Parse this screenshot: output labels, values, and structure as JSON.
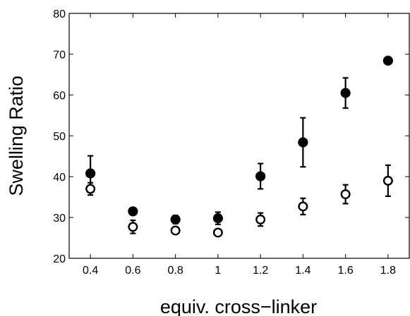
{
  "chart_data": {
    "type": "scatter",
    "title": "",
    "xlabel": "equiv. cross−linker",
    "ylabel": "Swelling Ratio",
    "xlim": [
      0.3,
      1.9
    ],
    "ylim": [
      20,
      80
    ],
    "xticks": [
      0.4,
      0.6,
      0.8,
      1.0,
      1.2,
      1.4,
      1.6,
      1.8
    ],
    "xtick_labels": [
      "0.4",
      "0.6",
      "0.8",
      "1",
      "1.2",
      "1.4",
      "1.6",
      "1.8"
    ],
    "yticks": [
      20,
      30,
      40,
      50,
      60,
      70,
      80
    ],
    "ytick_labels": [
      "20",
      "30",
      "40",
      "50",
      "60",
      "70",
      "80"
    ],
    "grid": false,
    "legend": "none",
    "series": [
      {
        "marker": "filled-circle",
        "color": "#000000",
        "x": [
          0.4,
          0.6,
          0.8,
          1.0,
          1.2,
          1.4,
          1.6,
          1.8
        ],
        "y": [
          40.8,
          31.5,
          29.5,
          29.8,
          40.1,
          48.4,
          60.5,
          68.4
        ],
        "err": [
          4.3,
          0.5,
          1.0,
          1.5,
          3.1,
          6.0,
          3.7,
          0.4
        ]
      },
      {
        "marker": "open-circle",
        "color": "#000000",
        "x": [
          0.4,
          0.6,
          0.8,
          1.0,
          1.2,
          1.4,
          1.6,
          1.8
        ],
        "y": [
          37.0,
          27.7,
          26.8,
          26.3,
          29.5,
          32.7,
          35.7,
          39.0
        ],
        "err": [
          1.5,
          1.6,
          0.5,
          0.5,
          1.6,
          2.0,
          2.3,
          3.8
        ]
      }
    ]
  }
}
